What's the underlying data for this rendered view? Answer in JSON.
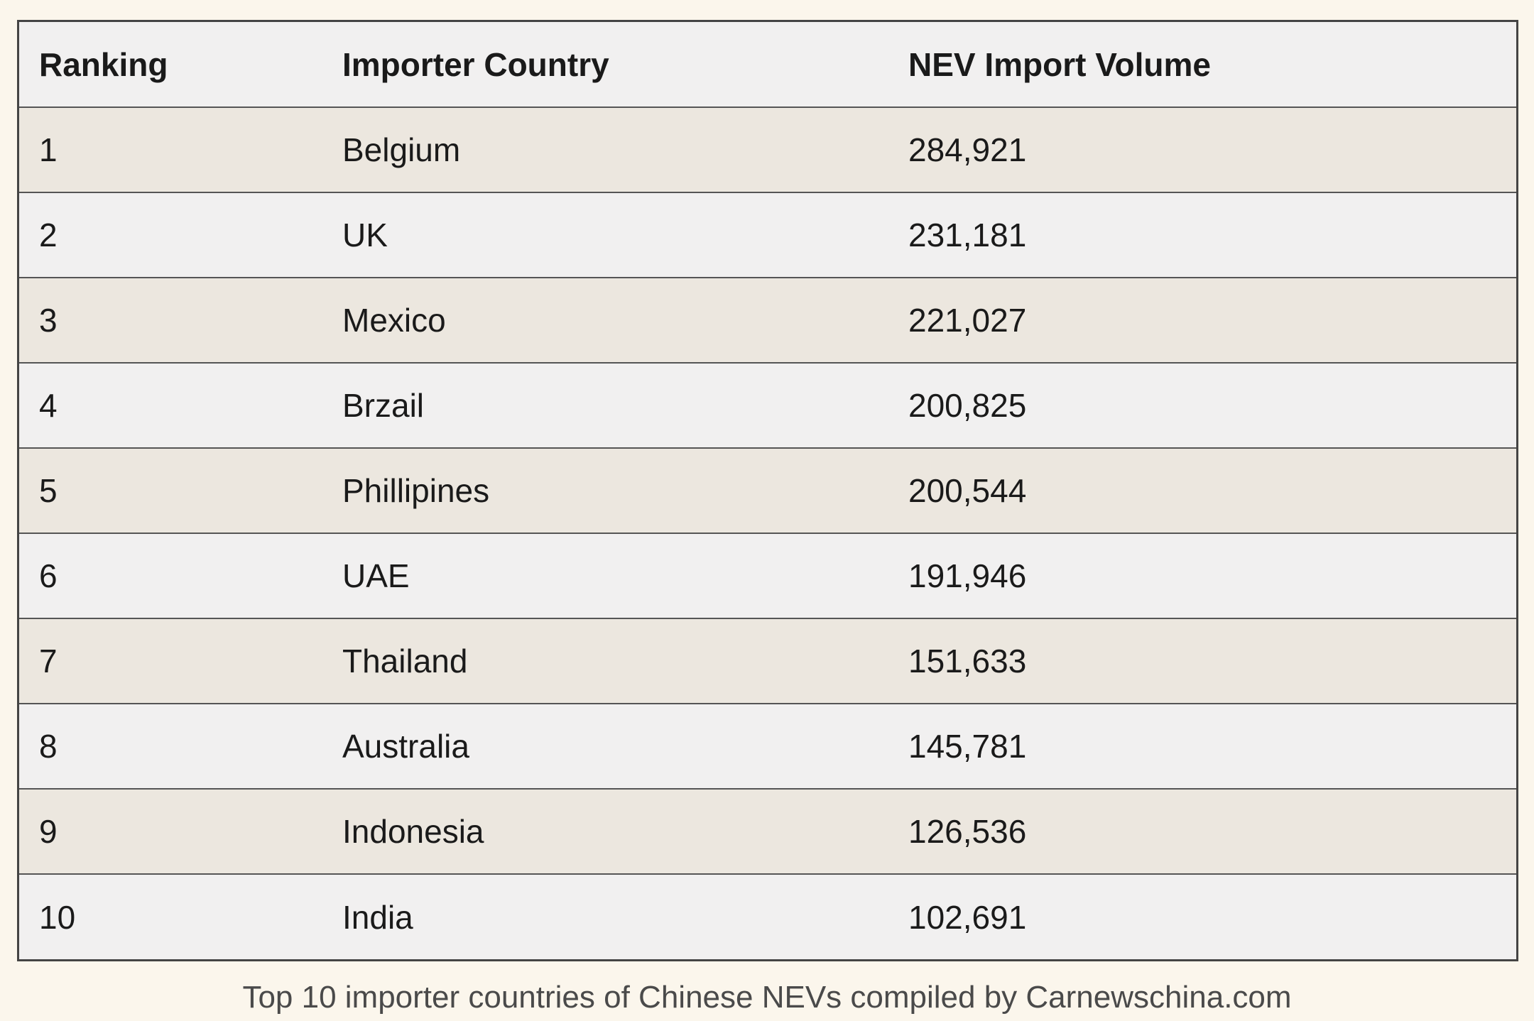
{
  "table": {
    "headers": [
      "Ranking",
      "Importer Country",
      "NEV Import Volume"
    ],
    "rows": [
      [
        "1",
        "Belgium",
        "284,921"
      ],
      [
        "2",
        "UK",
        "231,181"
      ],
      [
        "3",
        "Mexico",
        "221,027"
      ],
      [
        "4",
        "Brzail",
        "200,825"
      ],
      [
        "5",
        "Phillipines",
        "200,544"
      ],
      [
        "6",
        "UAE",
        "191,946"
      ],
      [
        "7",
        "Thailand",
        "151,633"
      ],
      [
        "8",
        "Australia",
        "145,781"
      ],
      [
        "9",
        "Indonesia",
        "126,536"
      ],
      [
        "10",
        "India",
        "102,691"
      ]
    ]
  },
  "caption": "Top 10 importer countries of Chinese NEVs compiled by Carnewschina.com",
  "colors": {
    "page_background": "#fbf6ec",
    "row_odd": "#ece7df",
    "row_even": "#f1f0f0",
    "border": "#444444"
  }
}
